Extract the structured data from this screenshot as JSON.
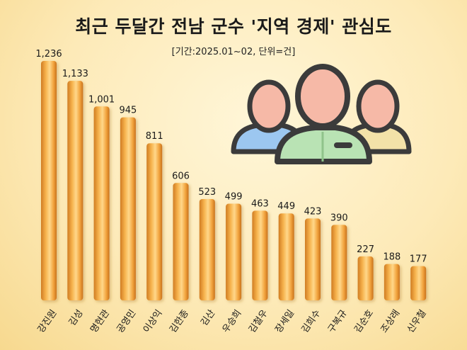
{
  "chart_data": {
    "type": "bar",
    "title": "최근 두달간 전남 군수 '지역 경제' 관심도",
    "subtitle": "[기간:2025.01~02, 단위=건]",
    "categories": [
      "강진원",
      "김성",
      "명현관",
      "공영민",
      "이상익",
      "김한종",
      "김산",
      "우승희",
      "김철우",
      "장세일",
      "김희수",
      "구복규",
      "김순호",
      "조상래",
      "신우철"
    ],
    "values": [
      1236,
      1133,
      1001,
      945,
      811,
      606,
      523,
      499,
      463,
      449,
      423,
      390,
      227,
      188,
      177
    ],
    "value_labels": [
      "1,236",
      "1,133",
      "1,001",
      "945",
      "811",
      "606",
      "523",
      "499",
      "463",
      "449",
      "423",
      "390",
      "227",
      "188",
      "177"
    ],
    "ylim": [
      0,
      1236
    ],
    "grid": false,
    "colors": {
      "bar_dark": "#d9892c",
      "bar_light": "#ffd27a",
      "bar_mid": "#f4a742"
    }
  },
  "decoration": {
    "icon": "people-group-icon"
  }
}
